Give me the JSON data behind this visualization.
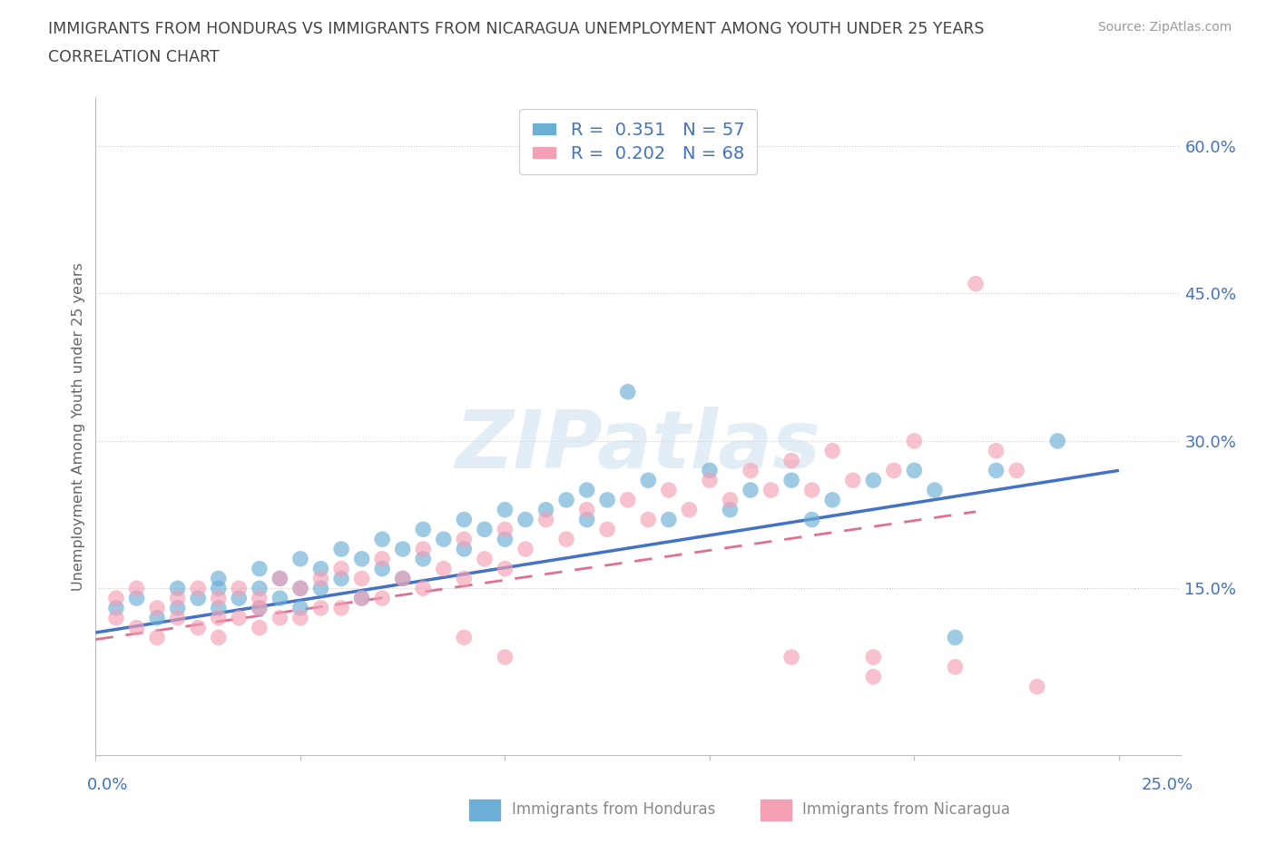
{
  "title_line1": "IMMIGRANTS FROM HONDURAS VS IMMIGRANTS FROM NICARAGUA UNEMPLOYMENT AMONG YOUTH UNDER 25 YEARS",
  "title_line2": "CORRELATION CHART",
  "source": "Source: ZipAtlas.com",
  "ylabel": "Unemployment Among Youth under 25 years",
  "xlim": [
    0.0,
    0.265
  ],
  "ylim": [
    -0.02,
    0.65
  ],
  "ytick_vals": [
    0.15,
    0.3,
    0.45,
    0.6
  ],
  "ytick_labels": [
    "15.0%",
    "30.0%",
    "45.0%",
    "60.0%"
  ],
  "honduras_color": "#6baed6",
  "nicaragua_color": "#f4a0b5",
  "honduras_line_color": "#4472c4",
  "nicaragua_line_color": "#e07090",
  "watermark": "ZIPatlas",
  "background_color": "#ffffff",
  "grid_color": "#c8c8c8",
  "title_color": "#444444",
  "axis_label_color": "#4472c4",
  "source_color": "#999999",
  "ylabel_color": "#666666",
  "honduras_x": [
    0.005,
    0.01,
    0.015,
    0.02,
    0.02,
    0.025,
    0.03,
    0.03,
    0.03,
    0.035,
    0.04,
    0.04,
    0.04,
    0.045,
    0.045,
    0.05,
    0.05,
    0.05,
    0.055,
    0.055,
    0.06,
    0.06,
    0.065,
    0.065,
    0.07,
    0.07,
    0.075,
    0.075,
    0.08,
    0.08,
    0.085,
    0.09,
    0.09,
    0.095,
    0.1,
    0.1,
    0.105,
    0.11,
    0.115,
    0.12,
    0.12,
    0.125,
    0.13,
    0.135,
    0.14,
    0.15,
    0.155,
    0.16,
    0.17,
    0.175,
    0.18,
    0.19,
    0.2,
    0.205,
    0.21,
    0.22,
    0.235
  ],
  "honduras_y": [
    0.13,
    0.14,
    0.12,
    0.15,
    0.13,
    0.14,
    0.16,
    0.13,
    0.15,
    0.14,
    0.17,
    0.15,
    0.13,
    0.16,
    0.14,
    0.18,
    0.15,
    0.13,
    0.17,
    0.15,
    0.19,
    0.16,
    0.18,
    0.14,
    0.2,
    0.17,
    0.19,
    0.16,
    0.21,
    0.18,
    0.2,
    0.22,
    0.19,
    0.21,
    0.23,
    0.2,
    0.22,
    0.23,
    0.24,
    0.25,
    0.22,
    0.24,
    0.35,
    0.26,
    0.22,
    0.27,
    0.23,
    0.25,
    0.26,
    0.22,
    0.24,
    0.26,
    0.27,
    0.25,
    0.1,
    0.27,
    0.3
  ],
  "nicaragua_x": [
    0.005,
    0.005,
    0.01,
    0.01,
    0.015,
    0.015,
    0.02,
    0.02,
    0.025,
    0.025,
    0.03,
    0.03,
    0.03,
    0.035,
    0.035,
    0.04,
    0.04,
    0.04,
    0.045,
    0.045,
    0.05,
    0.05,
    0.055,
    0.055,
    0.06,
    0.06,
    0.065,
    0.065,
    0.07,
    0.07,
    0.075,
    0.08,
    0.08,
    0.085,
    0.09,
    0.09,
    0.095,
    0.1,
    0.1,
    0.105,
    0.11,
    0.115,
    0.12,
    0.125,
    0.13,
    0.135,
    0.14,
    0.145,
    0.15,
    0.155,
    0.16,
    0.165,
    0.17,
    0.175,
    0.18,
    0.185,
    0.19,
    0.195,
    0.2,
    0.21,
    0.215,
    0.22,
    0.225,
    0.23,
    0.09,
    0.1,
    0.17,
    0.19
  ],
  "nicaragua_y": [
    0.14,
    0.12,
    0.15,
    0.11,
    0.13,
    0.1,
    0.14,
    0.12,
    0.15,
    0.11,
    0.14,
    0.12,
    0.1,
    0.15,
    0.12,
    0.14,
    0.13,
    0.11,
    0.16,
    0.12,
    0.15,
    0.12,
    0.16,
    0.13,
    0.17,
    0.13,
    0.16,
    0.14,
    0.18,
    0.14,
    0.16,
    0.19,
    0.15,
    0.17,
    0.2,
    0.16,
    0.18,
    0.21,
    0.17,
    0.19,
    0.22,
    0.2,
    0.23,
    0.21,
    0.24,
    0.22,
    0.25,
    0.23,
    0.26,
    0.24,
    0.27,
    0.25,
    0.28,
    0.25,
    0.29,
    0.26,
    0.08,
    0.27,
    0.3,
    0.07,
    0.46,
    0.29,
    0.27,
    0.05,
    0.1,
    0.08,
    0.08,
    0.06
  ],
  "honduras_trend_x": [
    0.0,
    0.25
  ],
  "honduras_trend_y": [
    0.105,
    0.27
  ],
  "nicaragua_trend_x": [
    0.0,
    0.215
  ],
  "nicaragua_trend_y": [
    0.098,
    0.228
  ]
}
